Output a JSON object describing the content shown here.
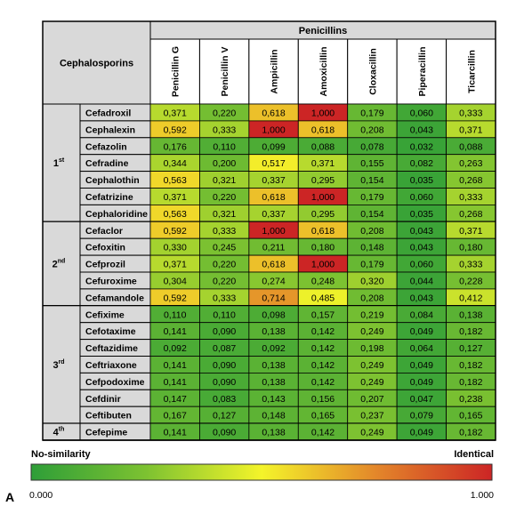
{
  "chart_data": {
    "type": "heatmap",
    "column_group_title": "Penicillins",
    "row_group_title": "Cephalosporins",
    "columns": [
      "Penicillin G",
      "Penicillin V",
      "Ampicillin",
      "Amoxicillin",
      "Cloxacillin",
      "Piperacillin",
      "Ticarcillin"
    ],
    "generations": [
      {
        "label": "1",
        "sup": "st",
        "rows": [
          {
            "name": "Cefadroxil",
            "values": [
              "0,371",
              "0,220",
              "0,618",
              "1,000",
              "0,179",
              "0,060",
              "0,333"
            ]
          },
          {
            "name": "Cephalexin",
            "values": [
              "0,592",
              "0,333",
              "1,000",
              "0,618",
              "0,208",
              "0,043",
              "0,371"
            ]
          },
          {
            "name": "Cefazolin",
            "values": [
              "0,176",
              "0,110",
              "0,099",
              "0,088",
              "0,078",
              "0,032",
              "0,088"
            ]
          },
          {
            "name": "Cefradine",
            "values": [
              "0,344",
              "0,200",
              "0,517",
              "0,371",
              "0,155",
              "0,082",
              "0,263"
            ]
          },
          {
            "name": "Cephalothin",
            "values": [
              "0,563",
              "0,321",
              "0,337",
              "0,295",
              "0,154",
              "0,035",
              "0,268"
            ]
          },
          {
            "name": "Cefatrizine",
            "values": [
              "0,371",
              "0,220",
              "0,618",
              "1,000",
              "0,179",
              "0,060",
              "0,333"
            ]
          },
          {
            "name": "Cephaloridine",
            "values": [
              "0,563",
              "0,321",
              "0,337",
              "0,295",
              "0,154",
              "0,035",
              "0,268"
            ]
          }
        ]
      },
      {
        "label": "2",
        "sup": "nd",
        "rows": [
          {
            "name": "Cefaclor",
            "values": [
              "0,592",
              "0,333",
              "1,000",
              "0,618",
              "0,208",
              "0,043",
              "0,371"
            ]
          },
          {
            "name": "Cefoxitin",
            "values": [
              "0,330",
              "0,245",
              "0,211",
              "0,180",
              "0,148",
              "0,043",
              "0,180"
            ]
          },
          {
            "name": "Cefprozil",
            "values": [
              "0,371",
              "0,220",
              "0,618",
              "1,000",
              "0,179",
              "0,060",
              "0,333"
            ]
          },
          {
            "name": "Cefuroxime",
            "values": [
              "0,304",
              "0,220",
              "0,274",
              "0,248",
              "0,320",
              "0,044",
              "0,228"
            ]
          },
          {
            "name": "Cefamandole",
            "values": [
              "0,592",
              "0,333",
              "0,714",
              "0,485",
              "0,208",
              "0,043",
              "0,412"
            ]
          }
        ]
      },
      {
        "label": "3",
        "sup": "rd",
        "rows": [
          {
            "name": "Cefixime",
            "values": [
              "0,110",
              "0,110",
              "0,098",
              "0,157",
              "0,219",
              "0,084",
              "0,138"
            ]
          },
          {
            "name": "Cefotaxime",
            "values": [
              "0,141",
              "0,090",
              "0,138",
              "0,142",
              "0,249",
              "0,049",
              "0,182"
            ]
          },
          {
            "name": "Ceftazidime",
            "values": [
              "0,092",
              "0,087",
              "0,092",
              "0,142",
              "0,198",
              "0,064",
              "0,127"
            ]
          },
          {
            "name": "Ceftriaxone",
            "values": [
              "0,141",
              "0,090",
              "0,138",
              "0,142",
              "0,249",
              "0,049",
              "0,182"
            ]
          },
          {
            "name": "Cefpodoxime",
            "values": [
              "0,141",
              "0,090",
              "0,138",
              "0,142",
              "0,249",
              "0,049",
              "0,182"
            ]
          },
          {
            "name": "Cefdinir",
            "values": [
              "0,147",
              "0,083",
              "0,143",
              "0,156",
              "0,207",
              "0,047",
              "0,238"
            ]
          },
          {
            "name": "Ceftibuten",
            "values": [
              "0,167",
              "0,127",
              "0,148",
              "0,165",
              "0,237",
              "0,079",
              "0,165"
            ]
          }
        ]
      },
      {
        "label": "4",
        "sup": "th",
        "rows": [
          {
            "name": "Cefepime",
            "values": [
              "0,141",
              "0,090",
              "0,138",
              "0,142",
              "0,249",
              "0,049",
              "0,182"
            ]
          }
        ]
      }
    ],
    "colorbar": {
      "left_label": "No-similarity",
      "right_label": "Identical",
      "min_label": "0.000",
      "max_label": "1.000",
      "range": [
        0,
        1
      ],
      "colors": [
        "#2e9e38",
        "#7dc231",
        "#f4f42a",
        "#e3862a",
        "#cc2525"
      ]
    },
    "panel_label": "A"
  }
}
